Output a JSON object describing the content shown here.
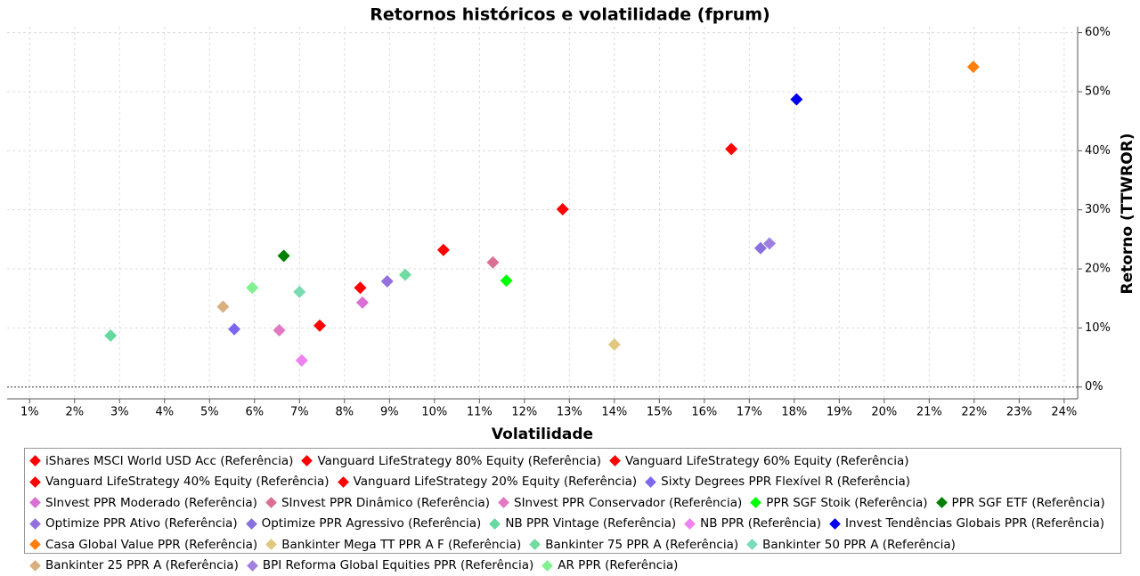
{
  "chart_data": {
    "type": "scatter",
    "title": "Retornos históricos e volatilidade (fprum)",
    "x_label": "Volatilidade",
    "y_label": "Retorno (TTWROR)",
    "xlim": [
      0.5,
      24.3
    ],
    "ylim": [
      -2,
      61
    ],
    "xticks": [
      {
        "value": 1,
        "label": "1%"
      },
      {
        "value": 2,
        "label": "2%"
      },
      {
        "value": 3,
        "label": "3%"
      },
      {
        "value": 4,
        "label": "4%"
      },
      {
        "value": 5,
        "label": "5%"
      },
      {
        "value": 6,
        "label": "6%"
      },
      {
        "value": 7,
        "label": "7%"
      },
      {
        "value": 8,
        "label": "8%"
      },
      {
        "value": 9,
        "label": "9%"
      },
      {
        "value": 10,
        "label": "10%"
      },
      {
        "value": 11,
        "label": "11%"
      },
      {
        "value": 12,
        "label": "12%"
      },
      {
        "value": 13,
        "label": "13%"
      },
      {
        "value": 14,
        "label": "14%"
      },
      {
        "value": 15,
        "label": "15%"
      },
      {
        "value": 16,
        "label": "16%"
      },
      {
        "value": 17,
        "label": "17%"
      },
      {
        "value": 18,
        "label": "18%"
      },
      {
        "value": 19,
        "label": "19%"
      },
      {
        "value": 20,
        "label": "20%"
      },
      {
        "value": 21,
        "label": "21%"
      },
      {
        "value": 22,
        "label": "22%"
      },
      {
        "value": 23,
        "label": "23%"
      },
      {
        "value": 24,
        "label": "24%"
      }
    ],
    "yticks": [
      {
        "value": 0,
        "label": "0%"
      },
      {
        "value": 10,
        "label": "10%"
      },
      {
        "value": 20,
        "label": "20%"
      },
      {
        "value": 30,
        "label": "30%"
      },
      {
        "value": 40,
        "label": "40%"
      },
      {
        "value": 50,
        "label": "50%"
      },
      {
        "value": 60,
        "label": "60%"
      }
    ],
    "grid": true,
    "series": [
      {
        "name": "iShares MSCI World USD Acc (Referência)",
        "color": "#ff0000",
        "x": [
          16.6
        ],
        "values": [
          40.3
        ]
      },
      {
        "name": "Vanguard LifeStrategy 80% Equity (Referência)",
        "color": "#ff0000",
        "x": [
          12.85
        ],
        "values": [
          30.1
        ]
      },
      {
        "name": "Vanguard LifeStrategy 60% Equity (Referência)",
        "color": "#ff0000",
        "x": [
          10.2
        ],
        "values": [
          23.2
        ]
      },
      {
        "name": "Vanguard LifeStrategy 40% Equity (Referência)",
        "color": "#ff0000",
        "x": [
          8.35
        ],
        "values": [
          16.8
        ]
      },
      {
        "name": "Vanguard LifeStrategy 20% Equity (Referência)",
        "color": "#ff0000",
        "x": [
          7.45
        ],
        "values": [
          10.4
        ]
      },
      {
        "name": "Sixty Degrees PPR Flexível R (Referência)",
        "color": "#7b68ee",
        "x": [
          5.55
        ],
        "values": [
          9.8
        ]
      },
      {
        "name": "SInvest PPR Moderado (Referência)",
        "color": "#da70d6",
        "x": [
          8.4
        ],
        "values": [
          14.3
        ]
      },
      {
        "name": "SInvest PPR Dinâmico (Referência)",
        "color": "#db7093",
        "x": [
          11.3
        ],
        "values": [
          21.1
        ]
      },
      {
        "name": "SInvest PPR Conservador (Referência)",
        "color": "#e377c2",
        "x": [
          6.55
        ],
        "values": [
          9.6
        ]
      },
      {
        "name": "PPR SGF Stoik (Referência)",
        "color": "#00ff00",
        "x": [
          11.6
        ],
        "values": [
          18.0
        ]
      },
      {
        "name": "PPR SGF ETF (Referência)",
        "color": "#008000",
        "x": [
          6.65
        ],
        "values": [
          22.2
        ]
      },
      {
        "name": "Optimize PPR Ativo (Referência)",
        "color": "#9370db",
        "x": [
          8.95
        ],
        "values": [
          17.9
        ]
      },
      {
        "name": "Optimize PPR Agressivo (Referência)",
        "color": "#8a70dd",
        "x": [
          17.25
        ],
        "values": [
          23.5
        ]
      },
      {
        "name": "NB PPR Vintage (Referência)",
        "color": "#66d9a0",
        "x": [
          2.8
        ],
        "values": [
          8.7
        ]
      },
      {
        "name": "NB PPR (Referência)",
        "color": "#ee82ee",
        "x": [
          7.05
        ],
        "values": [
          4.5
        ]
      },
      {
        "name": "Invest Tendências Globais PPR (Referência)",
        "color": "#0000ee",
        "x": [
          18.05
        ],
        "values": [
          48.7
        ]
      },
      {
        "name": "Casa Global Value PPR (Referência)",
        "color": "#ff7f0e",
        "x": [
          21.98
        ],
        "values": [
          54.2
        ]
      },
      {
        "name": "Bankinter Mega TT PPR A F (Referência)",
        "color": "#e0c880",
        "x": [
          14.0
        ],
        "values": [
          7.2
        ]
      },
      {
        "name": "Bankinter 75 PPR A (Referência)",
        "color": "#70dca0",
        "x": [
          9.35
        ],
        "values": [
          19.0
        ]
      },
      {
        "name": "Bankinter 50 PPR A (Referência)",
        "color": "#7adcb4",
        "x": [
          7.0
        ],
        "values": [
          16.1
        ]
      },
      {
        "name": "Bankinter 25 PPR A (Referência)",
        "color": "#d8b080",
        "x": [
          5.3
        ],
        "values": [
          13.6
        ]
      },
      {
        "name": "BPI Reforma Global Equities PPR (Referência)",
        "color": "#9f7fe0",
        "x": [
          17.45
        ],
        "values": [
          24.3
        ]
      },
      {
        "name": "AR PPR (Referência)",
        "color": "#80f090",
        "x": [
          5.95
        ],
        "values": [
          16.8
        ]
      }
    ]
  }
}
